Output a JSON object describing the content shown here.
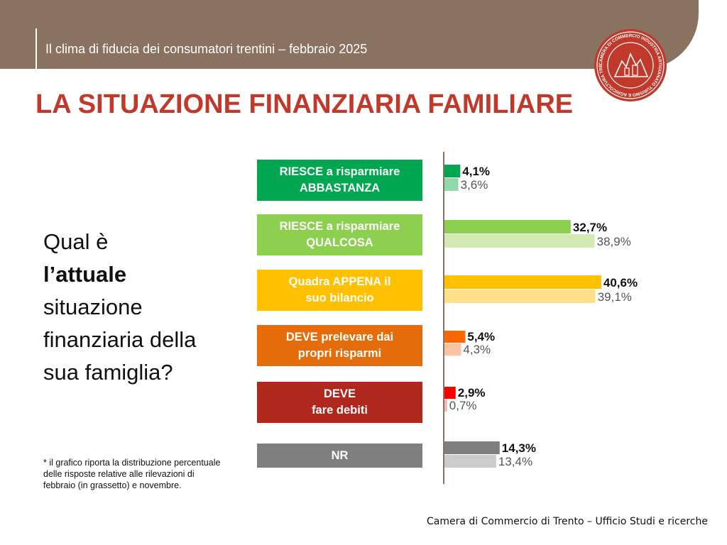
{
  "header": {
    "title": "Il clima di fiducia dei consumatori trentini – febbraio 2025"
  },
  "logo": {
    "icon": "camera-di-commercio-seal-icon",
    "text": "CAMERA DI COMMERCIO INDUSTRIA ARTIGIANATO TURISMO E AGRICOLTURA TRENTO"
  },
  "page_title": "LA SITUAZIONE FINANZIARIA FAMILIARE",
  "question": {
    "line1": "Qual è",
    "line2_bold": "l’attuale",
    "line3": "situazione",
    "line4": "finanziaria della",
    "line5": "sua famiglia?"
  },
  "footnote": "* il grafico riporta la distribuzione percentuale delle risposte relative alle rilevazioni di febbraio (in grassetto) e novembre.",
  "source": "Camera di Commercio di Trento – Ufficio Studi e ricerche",
  "chart_data": {
    "type": "bar",
    "orientation": "horizontal",
    "categories": [
      [
        "RIESCE a risparmiare",
        "ABBASTANZA"
      ],
      [
        "RIESCE a risparmiare",
        "QUALCOSA"
      ],
      [
        "Quadra APPENA il",
        "suo bilancio"
      ],
      [
        "DEVE prelevare dai",
        "propri risparmi"
      ],
      [
        "DEVE",
        "fare debiti"
      ],
      [
        "NR"
      ]
    ],
    "category_colors": [
      "#00a650",
      "#8dcf4f",
      "#ffc000",
      "#e46c0a",
      "#b0271d",
      "#7f7f7f"
    ],
    "series": [
      {
        "values": [
          4.1,
          32.7,
          40.6,
          5.4,
          2.9,
          14.3
        ],
        "labels": [
          "4,1%",
          "32,7%",
          "40,6%",
          "5,4%",
          "2,9%",
          "14,3%"
        ],
        "colors": [
          "#00a650",
          "#8dcf4f",
          "#ffc000",
          "#ff6600",
          "#ff0000",
          "#7f7f7f"
        ],
        "label_weight": "bold"
      },
      {
        "values": [
          3.6,
          38.9,
          39.1,
          4.3,
          0.7,
          13.4
        ],
        "labels": [
          "3,6%",
          "38,9%",
          "39,1%",
          "4,3%",
          "0,7%",
          "13,4%"
        ],
        "colors": [
          "#8fd9aa",
          "#d3eab4",
          "#ffe08a",
          "#fbc3a0",
          "#f4b8b8",
          "#cccccc"
        ],
        "label_weight": "normal"
      }
    ],
    "xlim": [
      0,
      50
    ],
    "legend": "none",
    "grid": false
  }
}
